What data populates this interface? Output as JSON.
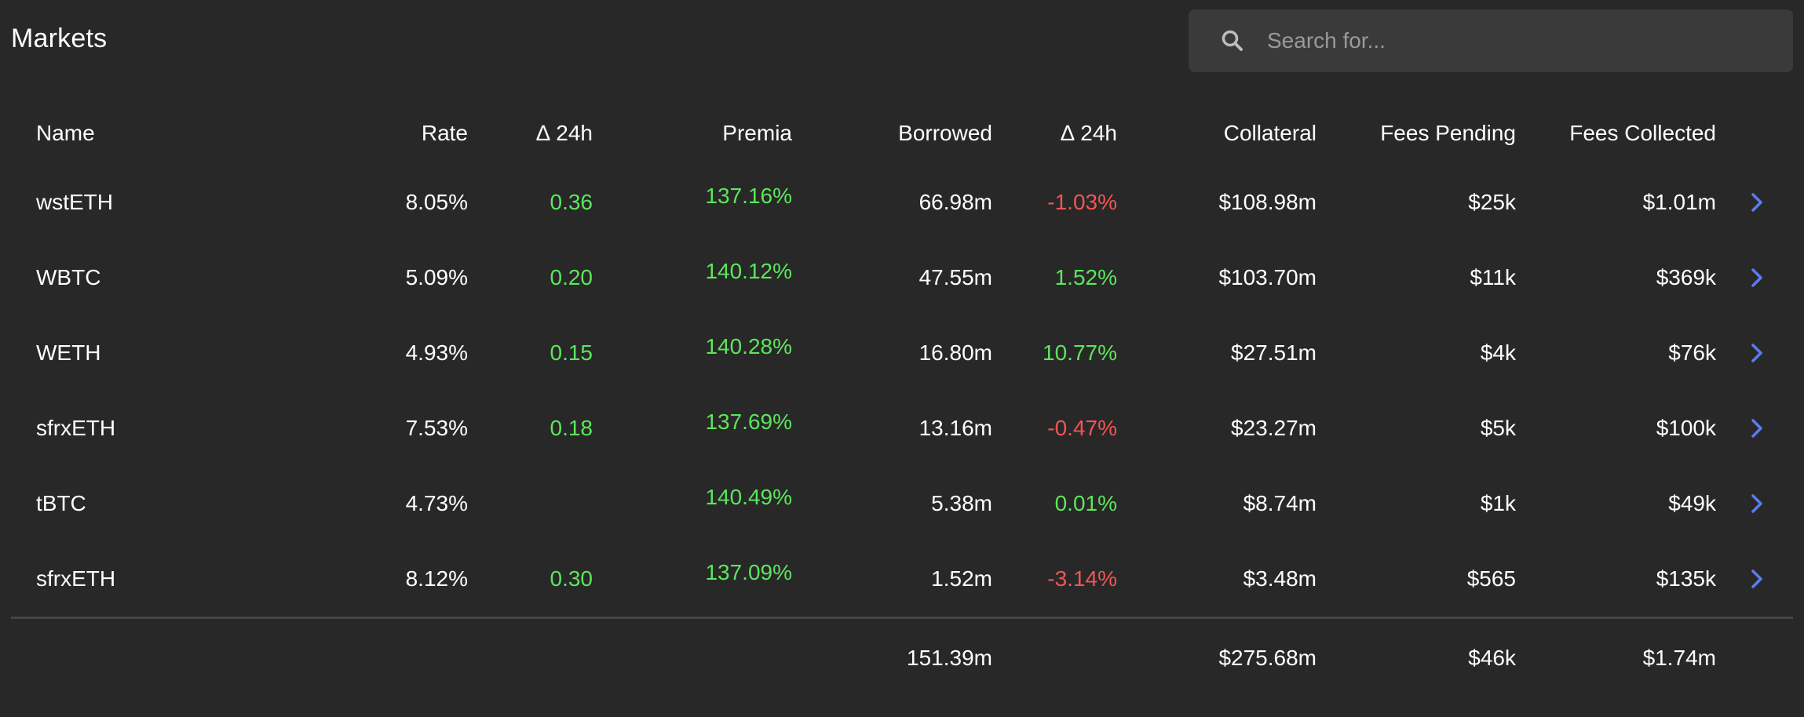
{
  "header": {
    "title": "Markets"
  },
  "search": {
    "placeholder": "Search for...",
    "value": ""
  },
  "columns": {
    "name": "Name",
    "rate": "Rate",
    "delta_rate": "∆ 24h",
    "premia": "Premia",
    "borrowed": "Borrowed",
    "delta_borrowed": "∆ 24h",
    "collateral": "Collateral",
    "fees_pending": "Fees Pending",
    "fees_collected": "Fees Collected"
  },
  "rows": [
    {
      "name": "wstETH",
      "rate": "8.05%",
      "delta_rate": "0.36",
      "premia": "137.16%",
      "borrowed": "66.98m",
      "delta_borrowed": "-1.03%",
      "delta_borrowed_dir": "down",
      "collateral": "$108.98m",
      "fees_pending": "$25k",
      "fees_collected": "$1.01m"
    },
    {
      "name": "WBTC",
      "rate": "5.09%",
      "delta_rate": "0.20",
      "premia": "140.12%",
      "borrowed": "47.55m",
      "delta_borrowed": "1.52%",
      "delta_borrowed_dir": "up",
      "collateral": "$103.70m",
      "fees_pending": "$11k",
      "fees_collected": "$369k"
    },
    {
      "name": "WETH",
      "rate": "4.93%",
      "delta_rate": "0.15",
      "premia": "140.28%",
      "borrowed": "16.80m",
      "delta_borrowed": "10.77%",
      "delta_borrowed_dir": "up",
      "collateral": "$27.51m",
      "fees_pending": "$4k",
      "fees_collected": "$76k"
    },
    {
      "name": "sfrxETH",
      "rate": "7.53%",
      "delta_rate": "0.18",
      "premia": "137.69%",
      "borrowed": "13.16m",
      "delta_borrowed": "-0.47%",
      "delta_borrowed_dir": "down",
      "collateral": "$23.27m",
      "fees_pending": "$5k",
      "fees_collected": "$100k"
    },
    {
      "name": "tBTC",
      "rate": "4.73%",
      "delta_rate": "",
      "premia": "140.49%",
      "borrowed": "5.38m",
      "delta_borrowed": "0.01%",
      "delta_borrowed_dir": "up",
      "collateral": "$8.74m",
      "fees_pending": "$1k",
      "fees_collected": "$49k"
    },
    {
      "name": "sfrxETH",
      "rate": "8.12%",
      "delta_rate": "0.30",
      "premia": "137.09%",
      "borrowed": "1.52m",
      "delta_borrowed": "-3.14%",
      "delta_borrowed_dir": "down",
      "collateral": "$3.48m",
      "fees_pending": "$565",
      "fees_collected": "$135k"
    }
  ],
  "totals": {
    "borrowed": "151.39m",
    "collateral": "$275.68m",
    "fees_pending": "$46k",
    "fees_collected": "$1.74m"
  },
  "colors": {
    "background": "#282828",
    "positive": "#5ce65c",
    "negative": "#f25555",
    "accent": "#5b7cf0",
    "search_bg": "#3a3a3a"
  },
  "icons": {
    "search": "search-icon",
    "row_action": "chevron-right-icon"
  }
}
